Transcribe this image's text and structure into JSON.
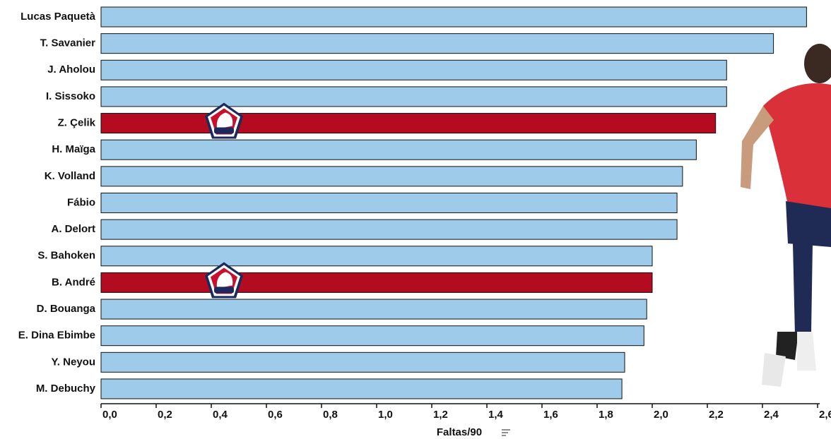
{
  "chart_data": {
    "type": "barh",
    "categories": [
      "Lucas Paquetà",
      "T. Savanier",
      "J. Aholou",
      "I. Sissoko",
      "Z. Çelik",
      "H. Maïga",
      "K. Volland",
      "Fábio",
      "A. Delort",
      "S. Bahoken",
      "B. André",
      "D. Bouanga",
      "E. Dina Ebimbe",
      "Y. Neyou",
      "M. Debuchy"
    ],
    "values": [
      2.56,
      2.44,
      2.27,
      2.27,
      2.23,
      2.16,
      2.11,
      2.09,
      2.09,
      2.0,
      2.0,
      1.98,
      1.97,
      1.9,
      1.89
    ],
    "colors": [
      "#9fcbea",
      "#9fcbea",
      "#9fcbea",
      "#9fcbea",
      "#b30b1f",
      "#9fcbea",
      "#9fcbea",
      "#9fcbea",
      "#9fcbea",
      "#9fcbea",
      "#b30b1f",
      "#9fcbea",
      "#9fcbea",
      "#9fcbea",
      "#9fcbea"
    ],
    "xlabel": "Faltas/90",
    "xlim": [
      0,
      2.6
    ],
    "xticks": [
      {
        "value": 0,
        "label": "0,0"
      },
      {
        "value": 0.2,
        "label": "0,2"
      },
      {
        "value": 0.4,
        "label": "0,4"
      },
      {
        "value": 0.6,
        "label": "0,6"
      },
      {
        "value": 0.8,
        "label": "0,8"
      },
      {
        "value": 1.0,
        "label": "1,0"
      },
      {
        "value": 1.2,
        "label": "1,2"
      },
      {
        "value": 1.4,
        "label": "1,4"
      },
      {
        "value": 1.6,
        "label": "1,6"
      },
      {
        "value": 1.8,
        "label": "1,8"
      },
      {
        "value": 2.0,
        "label": "2,0"
      },
      {
        "value": 2.2,
        "label": "2,2"
      },
      {
        "value": 2.4,
        "label": "2,4"
      },
      {
        "value": 2.6,
        "label": "2,6"
      }
    ]
  }
}
